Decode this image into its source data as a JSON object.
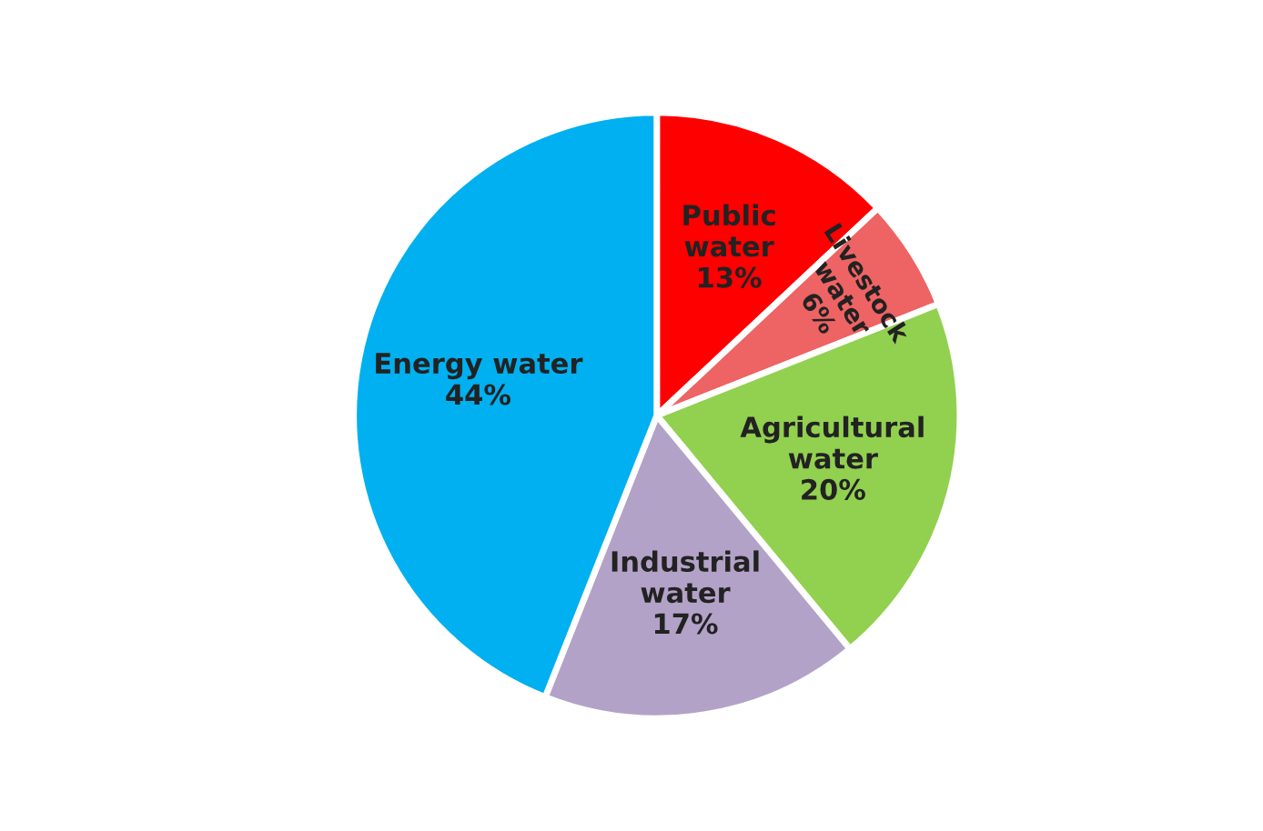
{
  "chart_data": {
    "type": "pie",
    "categories": [
      "Public water",
      "Livestock water",
      "Agricultural water",
      "Industrial water",
      "Energy water"
    ],
    "values": [
      13,
      6,
      20,
      17,
      44
    ],
    "colors": [
      "#ff0000",
      "#ee6363",
      "#92d050",
      "#b3a2c7",
      "#00b0f0"
    ],
    "value_labels": [
      "13%",
      "6%",
      "20%",
      "17%",
      "44%"
    ],
    "legend": false
  }
}
